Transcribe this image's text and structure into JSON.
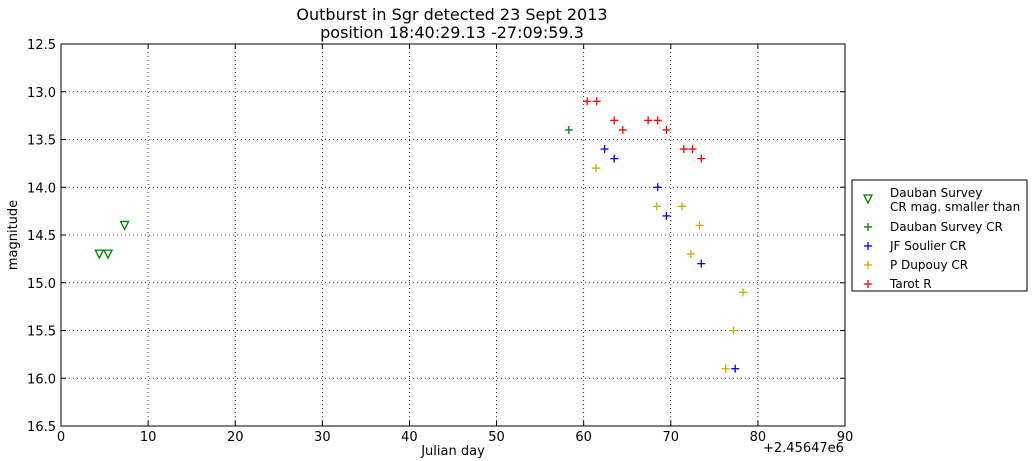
{
  "chart_data": {
    "type": "scatter",
    "title": "Outburst in Sgr detected 23 Sept 2013\nposition 18:40:29.13 -27:09:59.3",
    "xlabel": "Julian day",
    "ylabel": "magnitude",
    "x_offset_label": "+2.45647e6",
    "xlim": [
      0,
      90
    ],
    "ylim": [
      16.5,
      12.5
    ],
    "y_inverted": true,
    "grid": true,
    "legend_position": "right",
    "x_ticks": [
      0,
      10,
      20,
      30,
      40,
      50,
      60,
      70,
      80,
      90
    ],
    "y_ticks": [
      12.5,
      13.0,
      13.5,
      14.0,
      14.5,
      15.0,
      15.5,
      16.0,
      16.5
    ],
    "series": [
      {
        "name": "Dauban Survey\nCR mag. smaller than",
        "marker": "triangle-down",
        "color": "#008000",
        "points": [
          [
            4.4,
            14.7
          ],
          [
            5.4,
            14.7
          ],
          [
            7.3,
            14.4
          ]
        ]
      },
      {
        "name": "Dauban Survey CR",
        "marker": "plus",
        "color": "#008000",
        "points": [
          [
            58.3,
            13.4
          ]
        ]
      },
      {
        "name": "JF Soulier CR",
        "marker": "plus",
        "color": "#0000ff",
        "points": [
          [
            62.4,
            13.6
          ],
          [
            63.5,
            13.7
          ],
          [
            68.5,
            14.0
          ],
          [
            69.5,
            14.3
          ],
          [
            73.5,
            14.8
          ],
          [
            77.4,
            15.9
          ]
        ]
      },
      {
        "name": "P Dupouy CR",
        "marker": "plus",
        "color": "#ccaa00",
        "points": [
          [
            61.4,
            13.8
          ],
          [
            68.4,
            14.2
          ],
          [
            71.3,
            14.2
          ],
          [
            73.3,
            14.4
          ],
          [
            72.3,
            14.7
          ],
          [
            78.3,
            15.1
          ],
          [
            77.2,
            15.5
          ],
          [
            76.3,
            15.9
          ]
        ]
      },
      {
        "name": "Tarot R",
        "marker": "plus",
        "color": "#ff0000",
        "points": [
          [
            60.4,
            13.1
          ],
          [
            61.5,
            13.1
          ],
          [
            63.5,
            13.3
          ],
          [
            64.5,
            13.4
          ],
          [
            67.4,
            13.3
          ],
          [
            68.5,
            13.3
          ],
          [
            69.5,
            13.4
          ],
          [
            71.5,
            13.6
          ],
          [
            72.5,
            13.6
          ],
          [
            73.5,
            13.7
          ]
        ]
      }
    ]
  }
}
